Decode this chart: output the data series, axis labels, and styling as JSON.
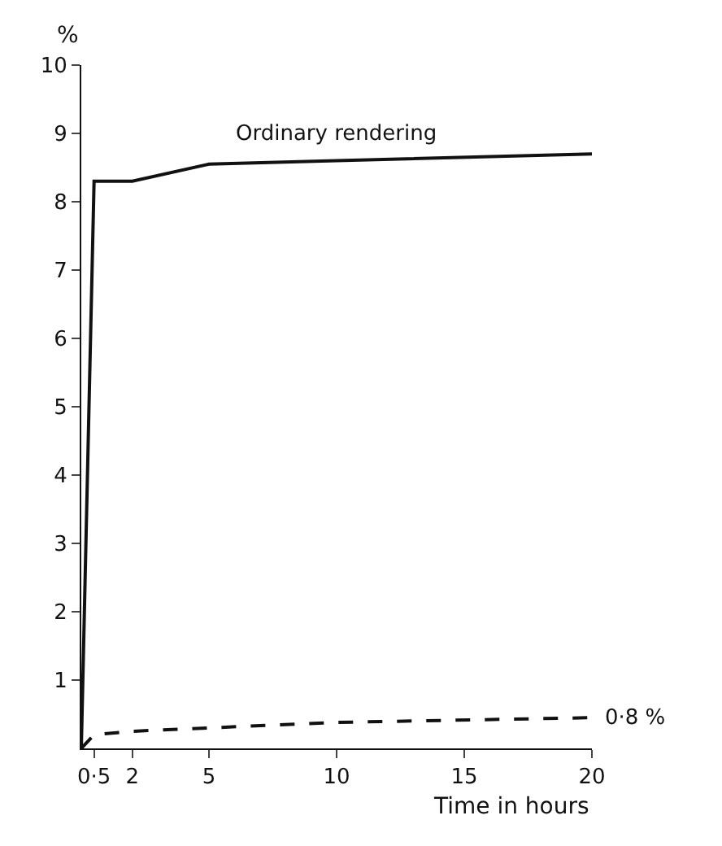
{
  "chart_data": {
    "type": "line",
    "ylabel": "%",
    "xlabel": "Time in hours",
    "x": [
      0,
      0.5,
      2,
      5,
      10,
      20
    ],
    "series": [
      {
        "name": "Ordinary rendering",
        "color": "#111111",
        "line_style": "solid",
        "values": [
          0,
          8.3,
          8.3,
          8.55,
          8.6,
          8.7
        ]
      },
      {
        "color": "#111111",
        "line_style": "dashed",
        "values": [
          0,
          0.2,
          0.25,
          0.3,
          0.38,
          0.45
        ]
      }
    ],
    "annotations": [
      {
        "text": "0·8 %",
        "x": 20,
        "y": 0.45
      }
    ],
    "xlim": [
      0,
      20
    ],
    "ylim": [
      0,
      10
    ],
    "xticks": [
      {
        "value": 0.5,
        "label": "0·5"
      },
      2,
      5,
      10,
      15,
      20
    ],
    "yticks": [
      1,
      2,
      3,
      4,
      5,
      6,
      7,
      8,
      9,
      10
    ],
    "marker": "none"
  }
}
